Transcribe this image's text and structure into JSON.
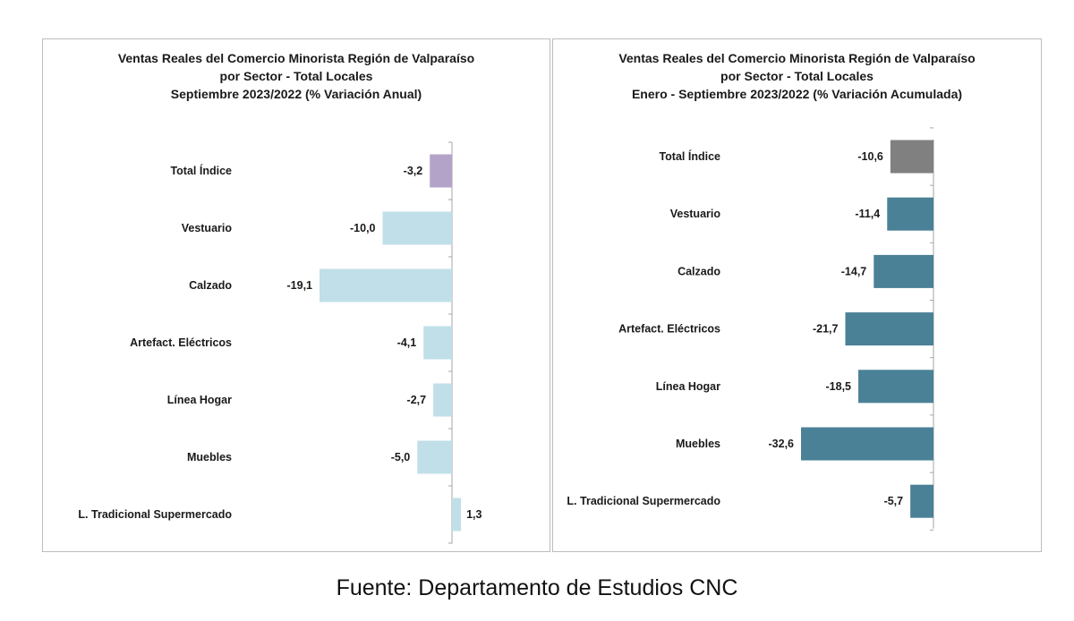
{
  "chart_data": [
    {
      "type": "bar",
      "orientation": "horizontal",
      "title_lines": [
        "Ventas Reales del Comercio Minorista Región de Valparaíso",
        "por Sector - Total Locales",
        "Septiembre 2023/2022 (% Variación Anual)"
      ],
      "categories": [
        "Total Índice",
        "Vestuario",
        "Calzado",
        "Artefact. Eléctricos",
        "Línea Hogar",
        "Muebles",
        "L. Tradicional Supermercado"
      ],
      "values": [
        -3.2,
        -10.0,
        -19.1,
        -4.1,
        -2.7,
        -5.0,
        1.3
      ],
      "value_labels": [
        "-3,2",
        "-10,0",
        "-19,1",
        "-4,1",
        "-2,7",
        "-5,0",
        "1,3"
      ],
      "colors": [
        "#b4a3c9",
        "#c0dfe9",
        "#c0dfe9",
        "#c0dfe9",
        "#c0dfe9",
        "#c0dfe9",
        "#c0dfe9"
      ],
      "xlim": [
        -19.1,
        1.3
      ],
      "grid": false,
      "legend": "none"
    },
    {
      "type": "bar",
      "orientation": "horizontal",
      "title_lines": [
        "Ventas Reales del Comercio Minorista Región de Valparaíso",
        "por Sector  - Total Locales",
        "Enero - Septiembre 2023/2022 (% Variación Acumulada)"
      ],
      "categories": [
        "Total Índice",
        "Vestuario",
        "Calzado",
        "Artefact. Eléctricos",
        "Línea Hogar",
        "Muebles",
        "L. Tradicional Supermercado"
      ],
      "values": [
        -10.6,
        -11.4,
        -14.7,
        -21.7,
        -18.5,
        -32.6,
        -5.7
      ],
      "value_labels": [
        "-10,6",
        "-11,4",
        "-14,7",
        "-21,7",
        "-18,5",
        "-32,6",
        "-5,7"
      ],
      "colors": [
        "#808080",
        "#4a8196",
        "#4a8196",
        "#4a8196",
        "#4a8196",
        "#4a8196",
        "#4a8196"
      ],
      "xlim": [
        -32.6,
        0
      ],
      "grid": false,
      "legend": "none"
    }
  ],
  "source": "Fuente: Departamento de Estudios CNC"
}
